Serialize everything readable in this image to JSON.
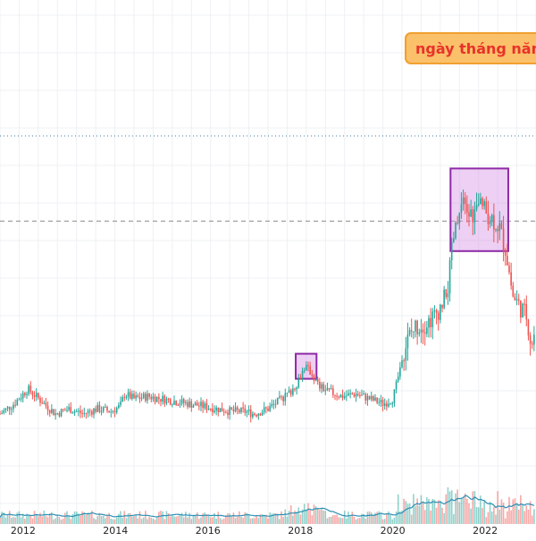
{
  "note": {
    "text": "ngày tháng năm"
  },
  "chart_data": {
    "type": "candlestick",
    "x_ticks": [
      "2012",
      "2014",
      "2016",
      "2018",
      "2020",
      "2022"
    ],
    "xlim": [
      2011.5,
      2023.1
    ],
    "ylim": [
      0,
      100
    ],
    "grid": true,
    "reference_lines": [
      {
        "style": "dotted",
        "color": "#3a7ca5",
        "level": 80
      },
      {
        "style": "dashed",
        "color": "#888888",
        "level": 63
      }
    ],
    "highlight_boxes": [
      {
        "from": 2017.9,
        "to": 2018.35,
        "low": 31.5,
        "high": 36.5
      },
      {
        "from": 2021.25,
        "to": 2022.5,
        "low": 57,
        "high": 73.5
      }
    ],
    "close_path": [
      [
        2011.5,
        24.5
      ],
      [
        2011.8,
        26.5
      ],
      [
        2012.1,
        29.5
      ],
      [
        2012.4,
        27
      ],
      [
        2012.7,
        24.5
      ],
      [
        2013.0,
        25.5
      ],
      [
        2013.3,
        24.5
      ],
      [
        2013.6,
        25.5
      ],
      [
        2013.9,
        25
      ],
      [
        2014.1,
        26
      ],
      [
        2014.2,
        28.5
      ],
      [
        2014.4,
        27.5
      ],
      [
        2014.7,
        28
      ],
      [
        2015.0,
        27.5
      ],
      [
        2015.3,
        27
      ],
      [
        2015.6,
        26.5
      ],
      [
        2015.9,
        26
      ],
      [
        2016.2,
        25.5
      ],
      [
        2016.5,
        25
      ],
      [
        2016.8,
        25
      ],
      [
        2017.0,
        24.5
      ],
      [
        2017.3,
        25.5
      ],
      [
        2017.6,
        27.5
      ],
      [
        2017.8,
        29
      ],
      [
        2017.95,
        31
      ],
      [
        2018.1,
        34
      ],
      [
        2018.25,
        32.5
      ],
      [
        2018.4,
        30
      ],
      [
        2018.6,
        29
      ],
      [
        2018.9,
        28
      ],
      [
        2019.2,
        28.5
      ],
      [
        2019.5,
        27.5
      ],
      [
        2019.8,
        26.5
      ],
      [
        2020.0,
        27.5
      ],
      [
        2020.1,
        31
      ],
      [
        2020.2,
        36
      ],
      [
        2020.35,
        40
      ],
      [
        2020.5,
        42
      ],
      [
        2020.7,
        42.5
      ],
      [
        2020.9,
        44
      ],
      [
        2021.1,
        47
      ],
      [
        2021.2,
        50
      ],
      [
        2021.3,
        59
      ],
      [
        2021.5,
        66
      ],
      [
        2021.7,
        64
      ],
      [
        2021.9,
        66
      ],
      [
        2022.1,
        64
      ],
      [
        2022.3,
        62
      ],
      [
        2022.45,
        57
      ],
      [
        2022.6,
        48
      ],
      [
        2022.75,
        46
      ],
      [
        2022.9,
        44
      ],
      [
        2023.0,
        38
      ],
      [
        2023.1,
        42
      ]
    ],
    "volume_series": "relative volume bars at bottom with moving-average line"
  }
}
